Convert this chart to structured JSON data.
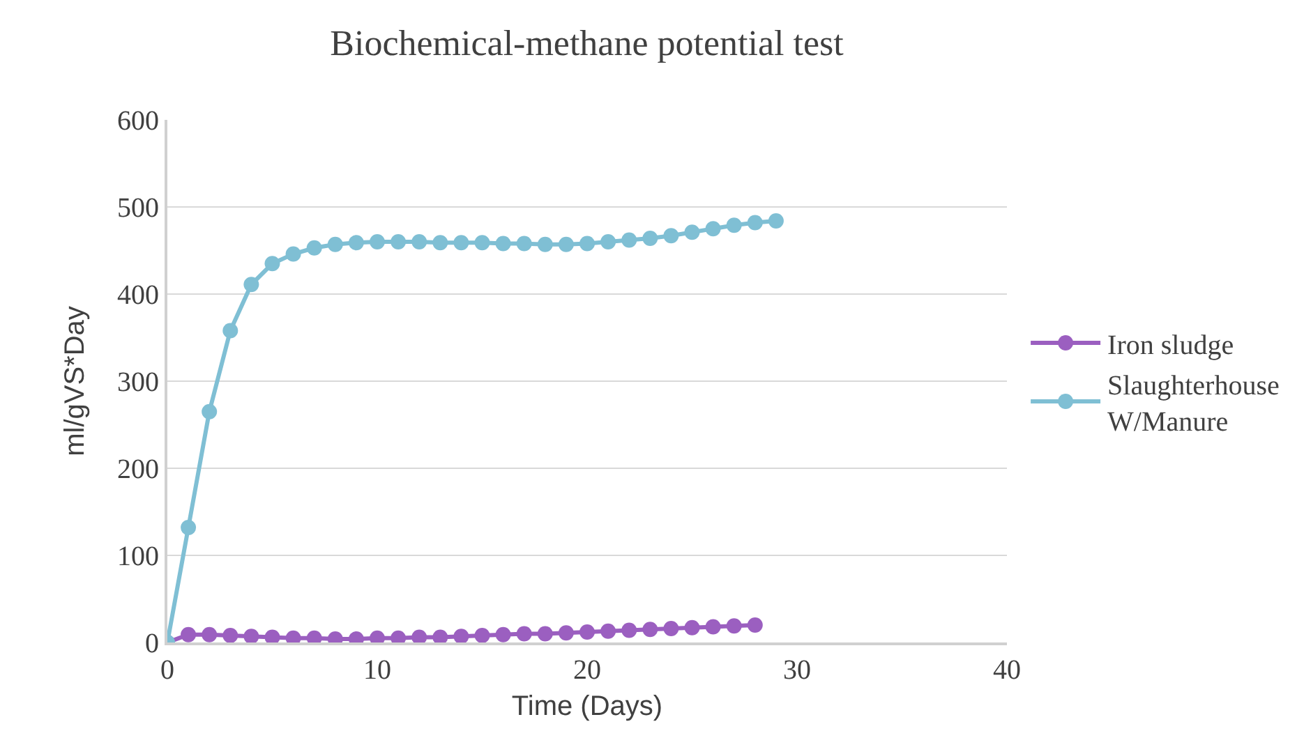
{
  "chart_data": {
    "type": "line",
    "title": "Biochemical-methane potential test",
    "xlabel": "Time (Days)",
    "ylabel": "ml/gVS*Day",
    "xlim": [
      0,
      40
    ],
    "xticks": [
      0,
      10,
      20,
      30,
      40
    ],
    "ylim": [
      0,
      600
    ],
    "yticks": [
      0,
      100,
      200,
      300,
      400,
      500,
      600
    ],
    "grid": "y",
    "legend": "right",
    "marker": "circle",
    "line_style": "solid",
    "series": [
      {
        "name": "Iron sludge",
        "color": "#9b5fc0",
        "x": [
          0,
          1,
          2,
          3,
          4,
          5,
          6,
          7,
          8,
          9,
          10,
          11,
          12,
          13,
          14,
          15,
          16,
          17,
          18,
          19,
          20,
          21,
          22,
          23,
          24,
          25,
          26,
          27,
          28
        ],
        "values": [
          0,
          9,
          9,
          8,
          7,
          6,
          5,
          5,
          4,
          4,
          5,
          5,
          6,
          6,
          7,
          8,
          9,
          10,
          10,
          11,
          12,
          13,
          14,
          15,
          16,
          17,
          18,
          19,
          20
        ]
      },
      {
        "name": "Slaughterhouse W/Manure",
        "color": "#7fbfd4",
        "x": [
          0,
          1,
          2,
          3,
          4,
          5,
          6,
          7,
          8,
          9,
          10,
          11,
          12,
          13,
          14,
          15,
          16,
          17,
          18,
          19,
          20,
          21,
          22,
          23,
          24,
          25,
          26,
          27,
          28,
          29
        ],
        "values": [
          0,
          132,
          265,
          358,
          411,
          435,
          446,
          453,
          457,
          459,
          460,
          460,
          460,
          459,
          459,
          459,
          458,
          458,
          457,
          457,
          458,
          460,
          462,
          464,
          467,
          471,
          475,
          479,
          482,
          484
        ]
      }
    ]
  }
}
